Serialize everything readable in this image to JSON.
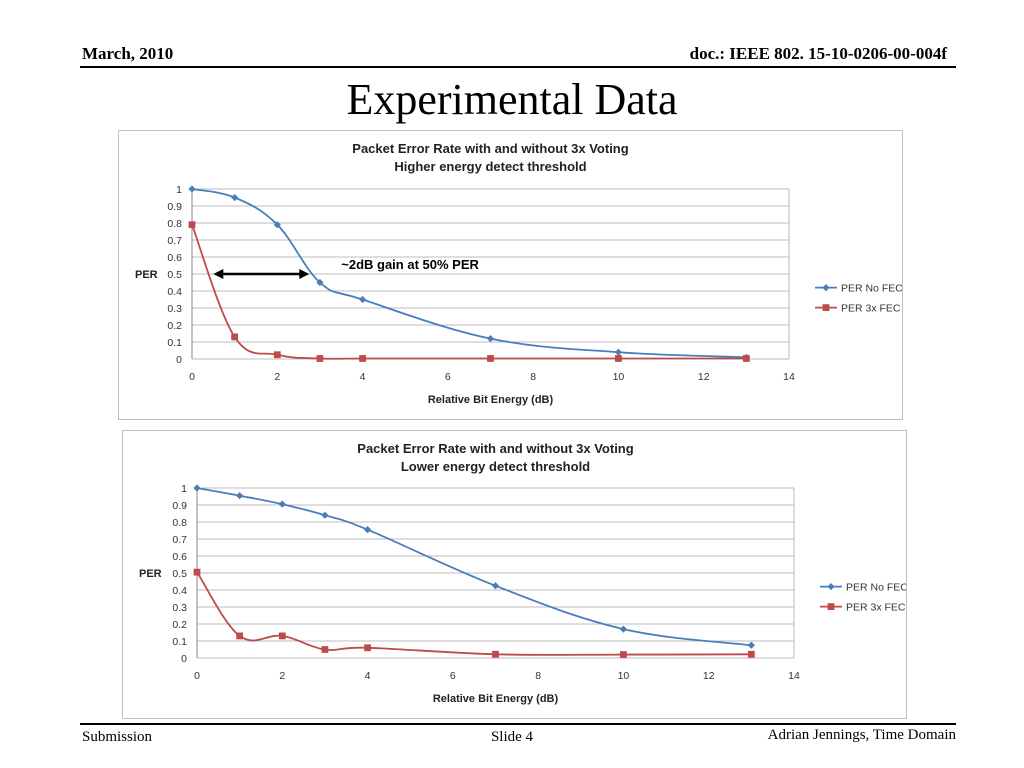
{
  "header": {
    "date": "March, 2010",
    "doc": "doc.: IEEE 802. 15-10-0206-00-004f"
  },
  "slide_title": "Experimental Data",
  "footer": {
    "left": "Submission",
    "center": "Slide 4",
    "right": "Adrian Jennings, Time Domain"
  },
  "colors": {
    "no_fec": "#4a7ebb",
    "fec": "#be4b48",
    "grid": "#a6a6a6"
  },
  "chart_data": [
    {
      "type": "line",
      "title": "Packet Error Rate with and without 3x Voting",
      "subtitle": "Higher energy detect threshold",
      "xlabel": "Relative Bit Energy (dB)",
      "ylabel": "PER",
      "xlim": [
        0,
        14
      ],
      "ylim": [
        0,
        1
      ],
      "xticks": [
        0,
        2,
        4,
        6,
        8,
        10,
        12,
        14
      ],
      "yticks": [
        0,
        0.1,
        0.2,
        0.3,
        0.4,
        0.5,
        0.6,
        0.7,
        0.8,
        0.9,
        1
      ],
      "grid": true,
      "legend": "right",
      "series": [
        {
          "name": "PER No FEC",
          "marker": "diamond",
          "color": "#4a7ebb",
          "x": [
            0,
            1,
            2,
            3,
            4,
            7,
            10,
            13
          ],
          "y": [
            1,
            0.95,
            0.79,
            0.45,
            0.35,
            0.12,
            0.04,
            0.01
          ]
        },
        {
          "name": "PER 3x FEC",
          "marker": "square",
          "color": "#be4b48",
          "x": [
            0,
            1,
            2,
            3,
            4,
            7,
            10,
            13
          ],
          "y": [
            0.79,
            0.13,
            0.025,
            0.003,
            0.003,
            0.003,
            0.003,
            0.003
          ]
        }
      ],
      "annotation": {
        "text": "~2dB gain at 50% PER",
        "x_from": 0.5,
        "x_to": 2.75,
        "y": 0.5
      }
    },
    {
      "type": "line",
      "title": "Packet Error Rate with and without 3x Voting",
      "subtitle": "Lower energy detect threshold",
      "xlabel": "Relative Bit Energy (dB)",
      "ylabel": "PER",
      "xlim": [
        0,
        14
      ],
      "ylim": [
        0,
        1
      ],
      "xticks": [
        0,
        2,
        4,
        6,
        8,
        10,
        12,
        14
      ],
      "yticks": [
        0,
        0.1,
        0.2,
        0.3,
        0.4,
        0.5,
        0.6,
        0.7,
        0.8,
        0.9,
        1
      ],
      "grid": true,
      "legend": "right",
      "series": [
        {
          "name": "PER No FEC",
          "marker": "diamond",
          "color": "#4a7ebb",
          "x": [
            0,
            1,
            2,
            3,
            4,
            7,
            10,
            13
          ],
          "y": [
            1,
            0.955,
            0.905,
            0.84,
            0.755,
            0.425,
            0.17,
            0.075
          ]
        },
        {
          "name": "PER 3x FEC",
          "marker": "square",
          "color": "#be4b48",
          "x": [
            0,
            1,
            2,
            3,
            4,
            7,
            10,
            13
          ],
          "y": [
            0.505,
            0.13,
            0.13,
            0.05,
            0.06,
            0.022,
            0.02,
            0.022
          ]
        }
      ]
    }
  ]
}
